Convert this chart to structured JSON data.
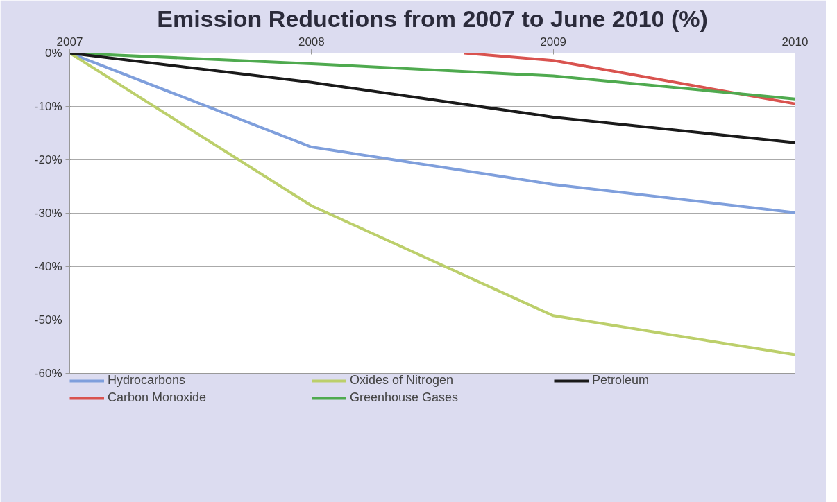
{
  "chart_data": {
    "type": "line",
    "title": "Emission Reductions from 2007 to June 2010 (%)",
    "x": [
      2007,
      2008,
      2009,
      2010
    ],
    "xlim": [
      2007,
      2010
    ],
    "xticks": [
      2007,
      2008,
      2009,
      2010
    ],
    "ylim": [
      -60,
      0
    ],
    "yticks": [
      {
        "value": -60,
        "label": "-60%"
      },
      {
        "value": -50,
        "label": "-50%"
      },
      {
        "value": -40,
        "label": "-40%"
      },
      {
        "value": -30,
        "label": "-30%"
      },
      {
        "value": -20,
        "label": "-20%"
      },
      {
        "value": -10,
        "label": "-10%"
      },
      {
        "value": 0,
        "label": "0%"
      }
    ],
    "grid": "y",
    "legend": "bottom",
    "marker": "none",
    "line_style": "solid",
    "series": [
      {
        "name": "Hydrocarbons",
        "color": "#7f9fdc",
        "values": [
          0,
          -17.6,
          -24.6,
          -29.9
        ]
      },
      {
        "name": "Carbon Monoxide",
        "color": "#d9534f",
        "x": [
          2008.63,
          2009,
          2010
        ],
        "values": [
          0,
          -1.4,
          -9.5
        ]
      },
      {
        "name": "Oxides of Nitrogen",
        "color": "#bccf6b",
        "values": [
          0,
          -28.6,
          -49.2,
          -56.5
        ]
      },
      {
        "name": "Greenhouse Gases",
        "color": "#4faa4f",
        "values": [
          0,
          -2.0,
          -4.3,
          -8.6
        ]
      },
      {
        "name": "Petroleum",
        "color": "#1a1a1a",
        "values": [
          0,
          -5.5,
          -12.0,
          -16.8
        ]
      }
    ]
  }
}
